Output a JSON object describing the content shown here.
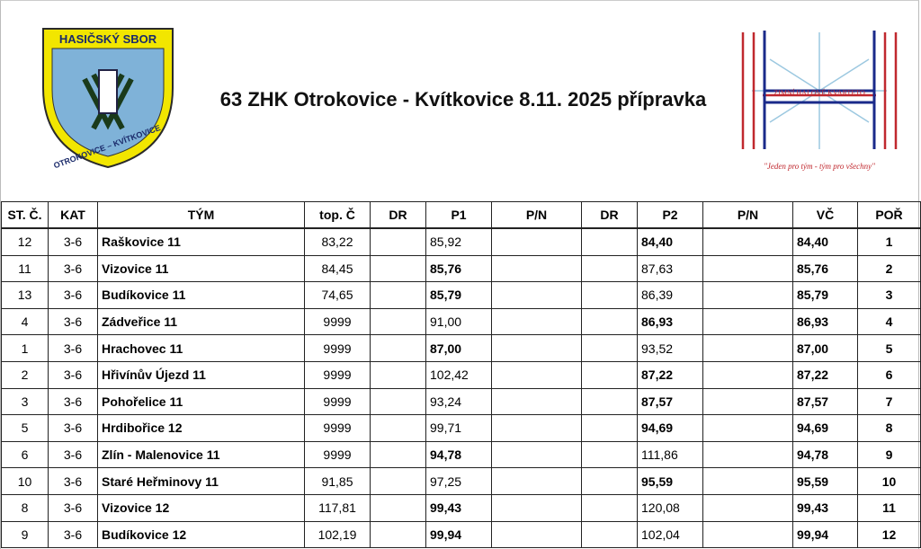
{
  "header": {
    "logo_left": {
      "top": "HASIČSKÝ SBOR",
      "bottom": "OTROKOVICE – KVÍTKOVICE"
    },
    "title": "63 ZHK Otrokovice - Kvítkovice 8.11. 2025 přípravka",
    "logo_right": {
      "banner": "ZIMNÍ HALOVÉ KVARTETO",
      "motto": "\"Jeden pro tým - tým pro všechny\""
    }
  },
  "table": {
    "columns": [
      "ST. Č.",
      "KAT",
      "TÝM",
      "top. Č",
      "DR",
      "P1",
      "P/N",
      "DR",
      "P2",
      "P/N",
      "VČ",
      "POŘ"
    ],
    "rows": [
      [
        "12",
        "3-6",
        "Raškovice 11",
        "83,22",
        null,
        "85,92",
        null,
        null,
        "84,40",
        null,
        "84,40",
        "1"
      ],
      [
        "11",
        "3-6",
        "Vizovice 11",
        "84,45",
        null,
        "85,76",
        null,
        null,
        "87,63",
        null,
        "85,76",
        "2"
      ],
      [
        "13",
        "3-6",
        "Budíkovice 11",
        "74,65",
        null,
        "85,79",
        null,
        null,
        "86,39",
        null,
        "85,79",
        "3"
      ],
      [
        "4",
        "3-6",
        "Zádveřice 11",
        "9999",
        null,
        "91,00",
        null,
        null,
        "86,93",
        null,
        "86,93",
        "4"
      ],
      [
        "1",
        "3-6",
        "Hrachovec 11",
        "9999",
        null,
        "87,00",
        null,
        null,
        "93,52",
        null,
        "87,00",
        "5"
      ],
      [
        "2",
        "3-6",
        "Hřivínův Újezd 11",
        "9999",
        null,
        "102,42",
        null,
        null,
        "87,22",
        null,
        "87,22",
        "6"
      ],
      [
        "3",
        "3-6",
        "Pohořelice 11",
        "9999",
        null,
        "93,24",
        null,
        null,
        "87,57",
        null,
        "87,57",
        "7"
      ],
      [
        "5",
        "3-6",
        "Hrdibořice 12",
        "9999",
        null,
        "99,71",
        null,
        null,
        "94,69",
        null,
        "94,69",
        "8"
      ],
      [
        "6",
        "3-6",
        "Zlín - Malenovice 11",
        "9999",
        null,
        "94,78",
        null,
        null,
        "111,86",
        null,
        "94,78",
        "9"
      ],
      [
        "10",
        "3-6",
        "Staré Heřminovy 11",
        "91,85",
        null,
        "97,25",
        null,
        null,
        "95,59",
        null,
        "95,59",
        "10"
      ],
      [
        "8",
        "3-6",
        "Vizovice 12",
        "117,81",
        null,
        "99,43",
        null,
        null,
        "120,08",
        null,
        "99,43",
        "11"
      ],
      [
        "9",
        "3-6",
        "Budíkovice 12",
        "102,19",
        null,
        "99,94",
        null,
        null,
        "102,04",
        null,
        "99,94",
        "12"
      ]
    ],
    "best": [
      "P2",
      "P1",
      "P1",
      "P2",
      "P1",
      "P2",
      "P2",
      "P2",
      "P1",
      "P2",
      "P1",
      "P1"
    ]
  }
}
